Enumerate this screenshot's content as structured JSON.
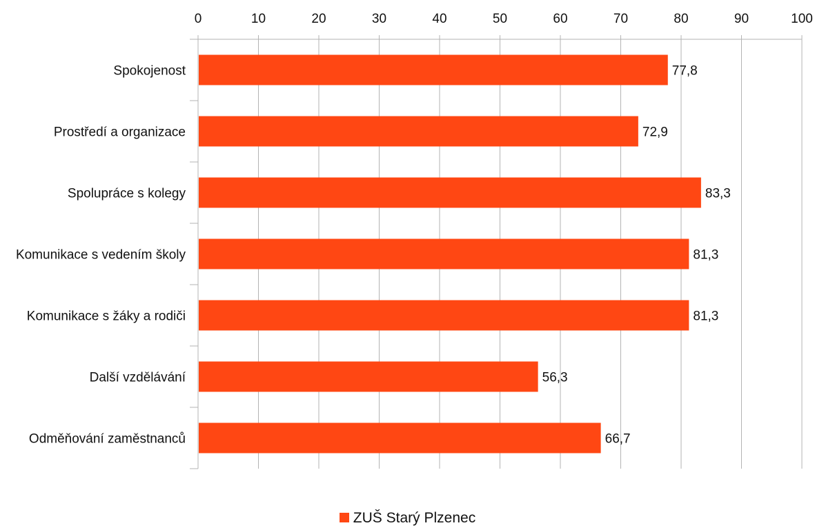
{
  "chart_data": {
    "type": "bar",
    "orientation": "horizontal",
    "categories": [
      "Spokojenost",
      "Prostředí a organizace",
      "Spolupráce s kolegy",
      "Komunikace s vedením školy",
      "Komunikace s žáky a rodiči",
      "Další vzdělávání",
      "Odměňování zaměstnanců"
    ],
    "series": [
      {
        "name": "ZUŠ Starý Plzenec",
        "values": [
          77.8,
          72.9,
          83.3,
          81.3,
          81.3,
          56.3,
          66.7
        ],
        "value_labels": [
          "77,8",
          "72,9",
          "83,3",
          "81,3",
          "81,3",
          "56,3",
          "66,7"
        ],
        "color": "#ff4713"
      }
    ],
    "xlim": [
      0,
      100
    ],
    "xticks": [
      0,
      10,
      20,
      30,
      40,
      50,
      60,
      70,
      80,
      90,
      100
    ],
    "x_axis_position": "top",
    "grid": true,
    "legend_position": "bottom"
  }
}
